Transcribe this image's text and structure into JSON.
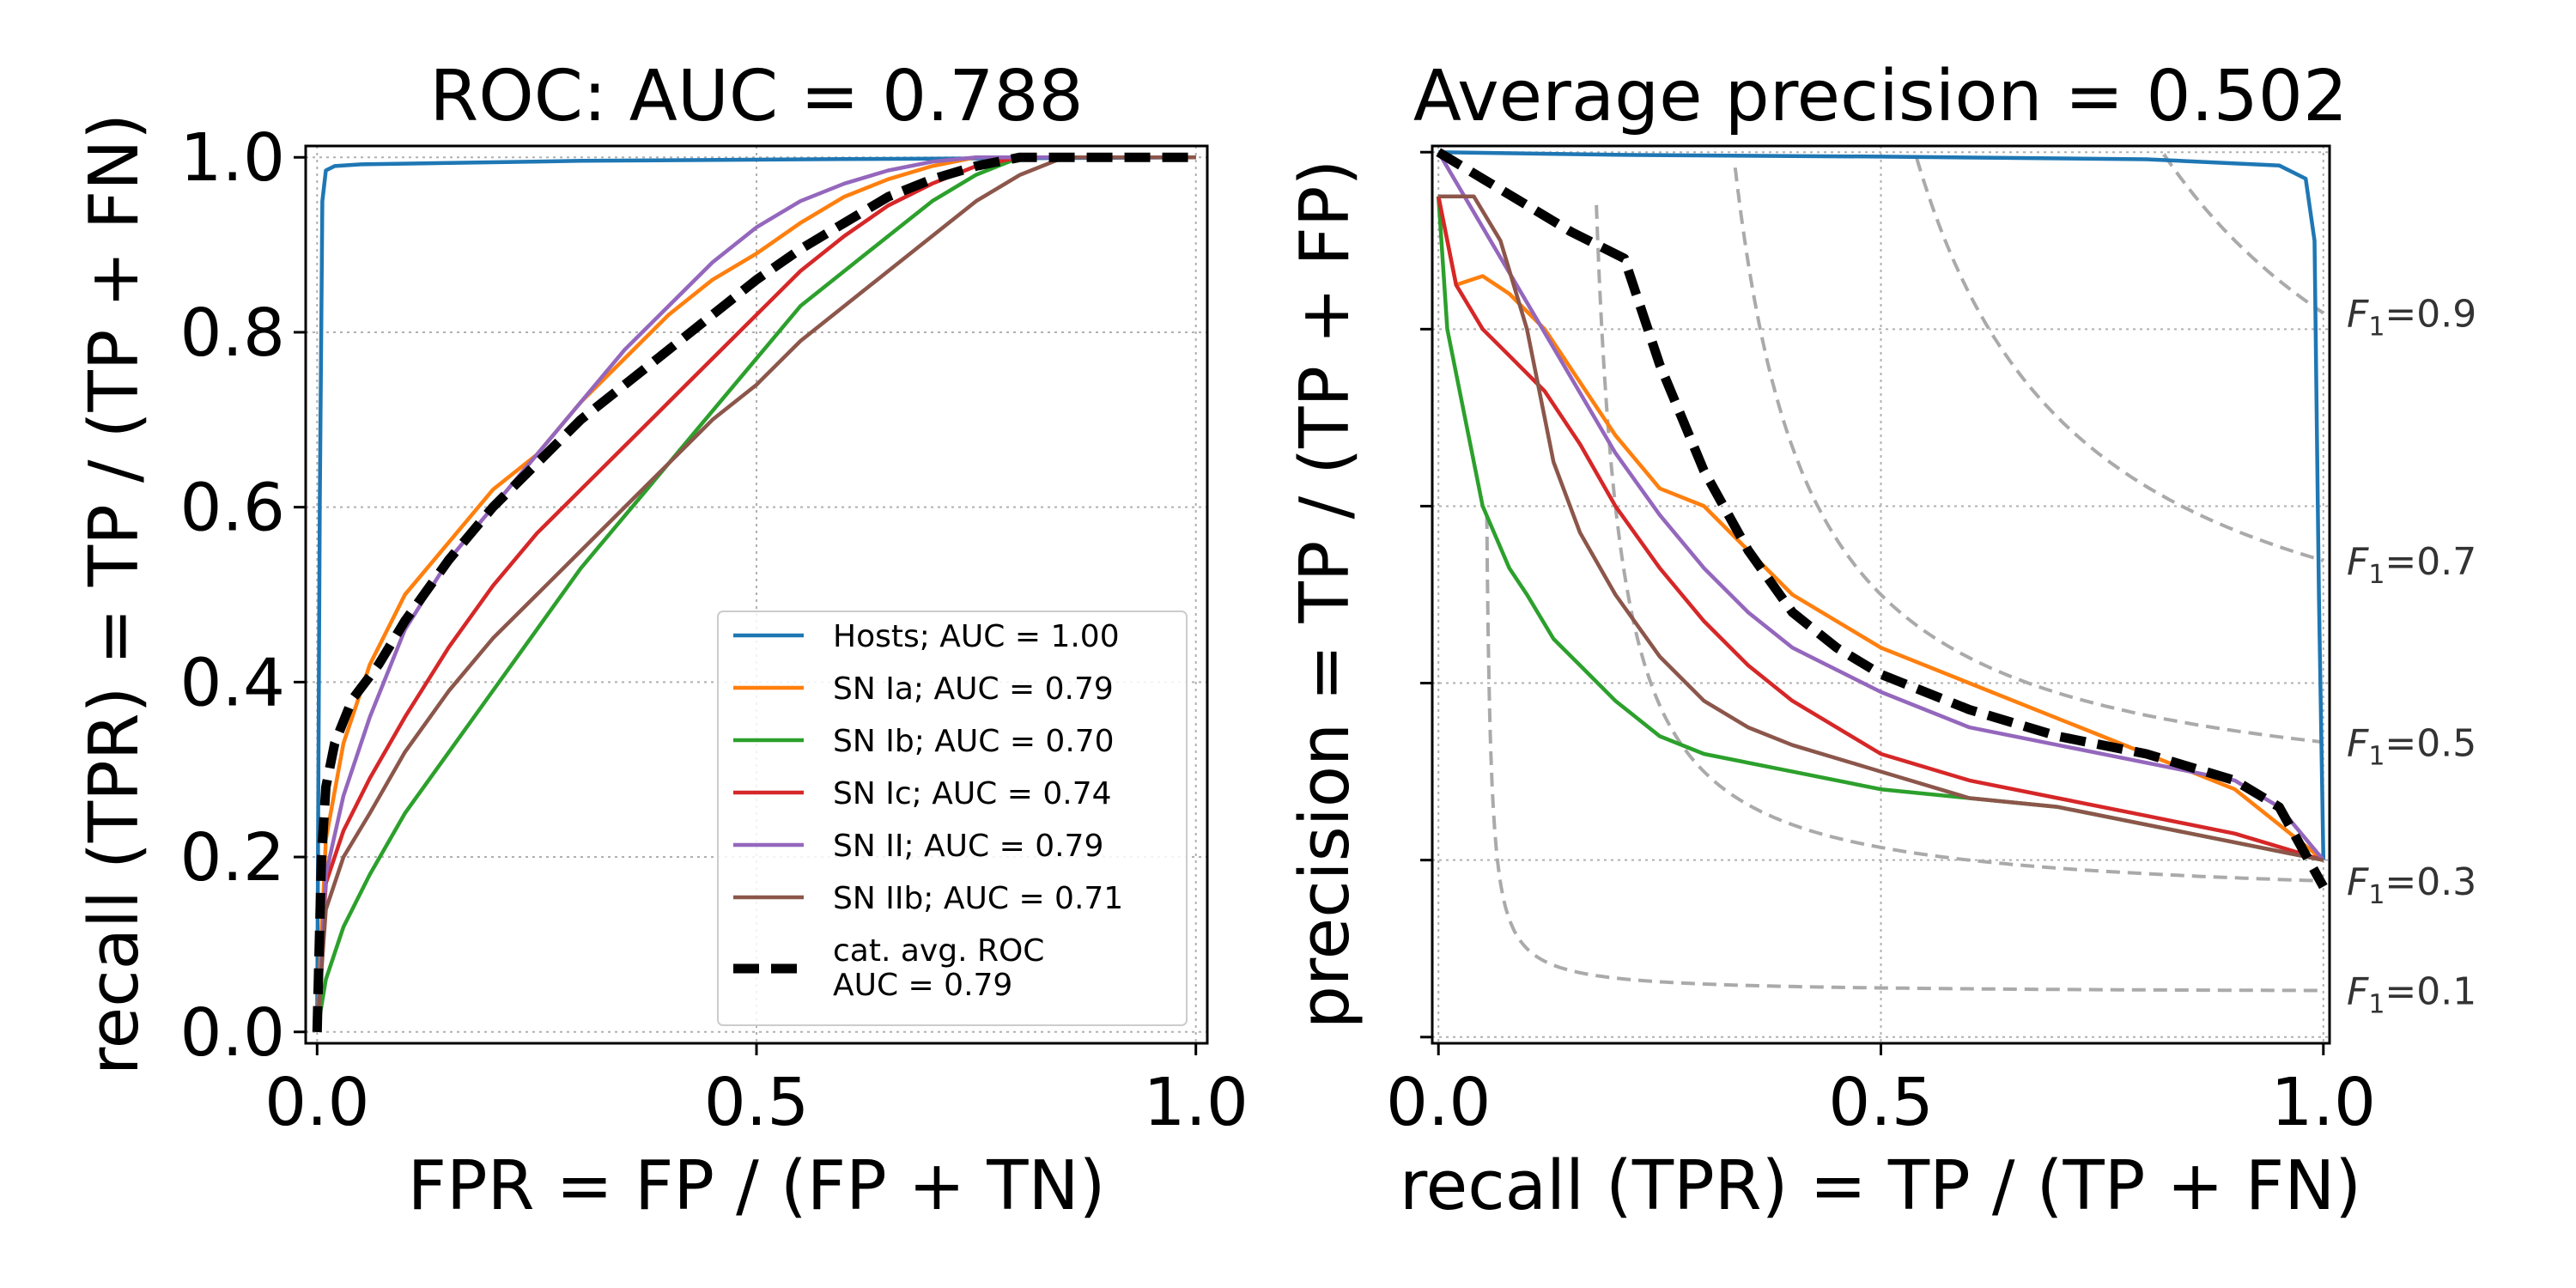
{
  "chart_data": [
    {
      "type": "line",
      "title": "ROC: AUC = 0.788",
      "xlabel": "FPR = FP / (FP + TN)",
      "ylabel": "recall (TPR) = TP / (TP + FN)",
      "xlim": [
        0,
        1
      ],
      "ylim": [
        0,
        1
      ],
      "xticks": [
        "0.0",
        "0.5",
        "1.0"
      ],
      "yticks": [
        "0.0",
        "0.2",
        "0.4",
        "0.6",
        "0.8",
        "1.0"
      ],
      "grid": true,
      "legend_position": "lower-right",
      "series": [
        {
          "name": "Hosts; AUC = 1.00",
          "color": "#1f77b4",
          "dashed": false,
          "x": [
            0,
            0.003,
            0.006,
            0.01,
            0.02,
            0.05,
            0.3,
            0.6,
            1.0
          ],
          "y": [
            0,
            0.6,
            0.95,
            0.985,
            0.99,
            0.992,
            0.996,
            0.998,
            1.0
          ]
        },
        {
          "name": "SN Ia; AUC = 0.79",
          "color": "#ff7f0e",
          "dashed": false,
          "x": [
            0,
            0.01,
            0.03,
            0.06,
            0.1,
            0.15,
            0.2,
            0.25,
            0.3,
            0.35,
            0.4,
            0.45,
            0.5,
            0.55,
            0.6,
            0.65,
            0.7,
            0.75,
            0.8,
            1.0
          ],
          "y": [
            0,
            0.22,
            0.33,
            0.42,
            0.5,
            0.56,
            0.62,
            0.66,
            0.72,
            0.77,
            0.82,
            0.86,
            0.89,
            0.925,
            0.955,
            0.975,
            0.99,
            1.0,
            1.0,
            1.0
          ]
        },
        {
          "name": "SN Ib; AUC = 0.70",
          "color": "#2ca02c",
          "dashed": false,
          "x": [
            0,
            0.01,
            0.03,
            0.06,
            0.1,
            0.15,
            0.2,
            0.25,
            0.3,
            0.35,
            0.4,
            0.45,
            0.5,
            0.55,
            0.6,
            0.65,
            0.7,
            0.75,
            0.8,
            1.0
          ],
          "y": [
            0,
            0.06,
            0.12,
            0.18,
            0.25,
            0.32,
            0.39,
            0.46,
            0.53,
            0.59,
            0.65,
            0.71,
            0.77,
            0.83,
            0.87,
            0.91,
            0.95,
            0.98,
            1.0,
            1.0
          ]
        },
        {
          "name": "SN Ic; AUC = 0.74",
          "color": "#d62728",
          "dashed": false,
          "x": [
            0,
            0.01,
            0.03,
            0.06,
            0.1,
            0.15,
            0.2,
            0.25,
            0.3,
            0.35,
            0.4,
            0.45,
            0.5,
            0.55,
            0.6,
            0.65,
            0.7,
            0.75,
            0.8,
            1.0
          ],
          "y": [
            0,
            0.17,
            0.23,
            0.29,
            0.36,
            0.44,
            0.51,
            0.57,
            0.62,
            0.67,
            0.72,
            0.77,
            0.82,
            0.87,
            0.91,
            0.945,
            0.97,
            0.99,
            1.0,
            1.0
          ]
        },
        {
          "name": "SN II; AUC = 0.79",
          "color": "#9467bd",
          "dashed": false,
          "x": [
            0,
            0.01,
            0.03,
            0.06,
            0.1,
            0.15,
            0.2,
            0.25,
            0.3,
            0.35,
            0.4,
            0.45,
            0.5,
            0.55,
            0.6,
            0.65,
            0.7,
            0.75,
            1.0
          ],
          "y": [
            0,
            0.18,
            0.27,
            0.36,
            0.46,
            0.54,
            0.6,
            0.66,
            0.72,
            0.78,
            0.83,
            0.88,
            0.92,
            0.95,
            0.97,
            0.985,
            0.995,
            1.0,
            1.0
          ]
        },
        {
          "name": "SN IIb; AUC = 0.71",
          "color": "#8c564b",
          "dashed": false,
          "x": [
            0,
            0.01,
            0.03,
            0.06,
            0.1,
            0.15,
            0.2,
            0.25,
            0.3,
            0.35,
            0.4,
            0.45,
            0.5,
            0.55,
            0.6,
            0.65,
            0.7,
            0.75,
            0.8,
            0.85,
            1.0
          ],
          "y": [
            0,
            0.14,
            0.2,
            0.25,
            0.32,
            0.39,
            0.45,
            0.5,
            0.55,
            0.6,
            0.65,
            0.7,
            0.74,
            0.79,
            0.83,
            0.87,
            0.91,
            0.95,
            0.98,
            1.0,
            1.0
          ]
        },
        {
          "name": "cat. avg. ROC\nAUC = 0.79",
          "color": "#000000",
          "dashed": true,
          "x": [
            0,
            0.005,
            0.01,
            0.02,
            0.04,
            0.07,
            0.1,
            0.15,
            0.2,
            0.25,
            0.3,
            0.35,
            0.4,
            0.45,
            0.5,
            0.55,
            0.6,
            0.65,
            0.7,
            0.75,
            0.8,
            0.85,
            1.0
          ],
          "y": [
            0,
            0.2,
            0.28,
            0.33,
            0.38,
            0.42,
            0.47,
            0.54,
            0.6,
            0.65,
            0.7,
            0.74,
            0.78,
            0.82,
            0.86,
            0.895,
            0.925,
            0.955,
            0.975,
            0.99,
            1.0,
            1.0,
            1.0
          ]
        }
      ]
    },
    {
      "type": "line",
      "title": "Average precision = 0.502",
      "xlabel": "recall (TPR) = TP / (TP + FN)",
      "ylabel": "precision = TP / (TP + FP)",
      "xlim": [
        0,
        1
      ],
      "ylim": [
        0,
        1
      ],
      "xticks": [
        "0.0",
        "0.5",
        "1.0"
      ],
      "yticks": [],
      "grid": true,
      "iso_f1": [
        "F_1 = 0.9",
        "F_1 = 0.7",
        "F_1 = 0.5",
        "F_1 = 0.3",
        "F_1 = 0.1"
      ],
      "iso_f1_values": [
        0.9,
        0.7,
        0.5,
        0.3,
        0.1
      ],
      "series": [
        {
          "name": "Hosts",
          "color": "#1f77b4",
          "dashed": false,
          "x": [
            0,
            0.2,
            0.5,
            0.8,
            0.95,
            0.98,
            0.99,
            0.995,
            1.0
          ],
          "y": [
            1.0,
            0.997,
            0.995,
            0.992,
            0.985,
            0.97,
            0.9,
            0.5,
            0.2
          ]
        },
        {
          "name": "SN Ia",
          "color": "#ff7f0e",
          "dashed": false,
          "x": [
            0,
            0.02,
            0.05,
            0.08,
            0.12,
            0.16,
            0.2,
            0.25,
            0.3,
            0.35,
            0.4,
            0.5,
            0.6,
            0.7,
            0.8,
            0.9,
            0.95,
            1.0
          ],
          "y": [
            0.95,
            0.85,
            0.86,
            0.84,
            0.8,
            0.74,
            0.68,
            0.62,
            0.6,
            0.55,
            0.5,
            0.44,
            0.4,
            0.36,
            0.32,
            0.28,
            0.24,
            0.2
          ]
        },
        {
          "name": "SN Ib",
          "color": "#2ca02c",
          "dashed": false,
          "x": [
            0,
            0.01,
            0.03,
            0.05,
            0.08,
            0.1,
            0.13,
            0.16,
            0.2,
            0.25,
            0.3,
            0.4,
            0.5,
            0.6,
            0.7,
            0.8,
            0.9,
            1.0
          ],
          "y": [
            0.95,
            0.8,
            0.7,
            0.6,
            0.53,
            0.5,
            0.45,
            0.42,
            0.38,
            0.34,
            0.32,
            0.3,
            0.28,
            0.27,
            0.26,
            0.24,
            0.22,
            0.2
          ]
        },
        {
          "name": "SN Ic",
          "color": "#d62728",
          "dashed": false,
          "x": [
            0,
            0.02,
            0.05,
            0.08,
            0.12,
            0.16,
            0.2,
            0.25,
            0.3,
            0.35,
            0.4,
            0.5,
            0.6,
            0.7,
            0.8,
            0.9,
            1.0
          ],
          "y": [
            0.95,
            0.85,
            0.8,
            0.77,
            0.73,
            0.67,
            0.6,
            0.53,
            0.47,
            0.42,
            0.38,
            0.32,
            0.29,
            0.27,
            0.25,
            0.23,
            0.2
          ]
        },
        {
          "name": "SN II",
          "color": "#9467bd",
          "dashed": false,
          "x": [
            0,
            0.1,
            0.2,
            0.25,
            0.3,
            0.35,
            0.4,
            0.5,
            0.6,
            0.7,
            0.8,
            0.9,
            0.95,
            1.0
          ],
          "y": [
            1.0,
            0.83,
            0.66,
            0.59,
            0.53,
            0.48,
            0.44,
            0.39,
            0.35,
            0.33,
            0.31,
            0.29,
            0.26,
            0.2
          ]
        },
        {
          "name": "SN IIb",
          "color": "#8c564b",
          "dashed": false,
          "x": [
            0,
            0.04,
            0.07,
            0.1,
            0.13,
            0.16,
            0.2,
            0.25,
            0.3,
            0.35,
            0.4,
            0.5,
            0.6,
            0.7,
            0.8,
            0.9,
            1.0
          ],
          "y": [
            0.95,
            0.95,
            0.9,
            0.8,
            0.65,
            0.57,
            0.5,
            0.43,
            0.38,
            0.35,
            0.33,
            0.3,
            0.27,
            0.26,
            0.24,
            0.22,
            0.2
          ]
        },
        {
          "name": "cat. avg.",
          "color": "#000000",
          "dashed": true,
          "x": [
            0,
            0.05,
            0.1,
            0.15,
            0.21,
            0.25,
            0.3,
            0.35,
            0.4,
            0.45,
            0.5,
            0.6,
            0.7,
            0.8,
            0.9,
            0.95,
            1.0
          ],
          "y": [
            1.0,
            0.97,
            0.94,
            0.91,
            0.88,
            0.76,
            0.64,
            0.55,
            0.48,
            0.44,
            0.41,
            0.37,
            0.34,
            0.32,
            0.29,
            0.26,
            0.17
          ]
        }
      ]
    }
  ]
}
